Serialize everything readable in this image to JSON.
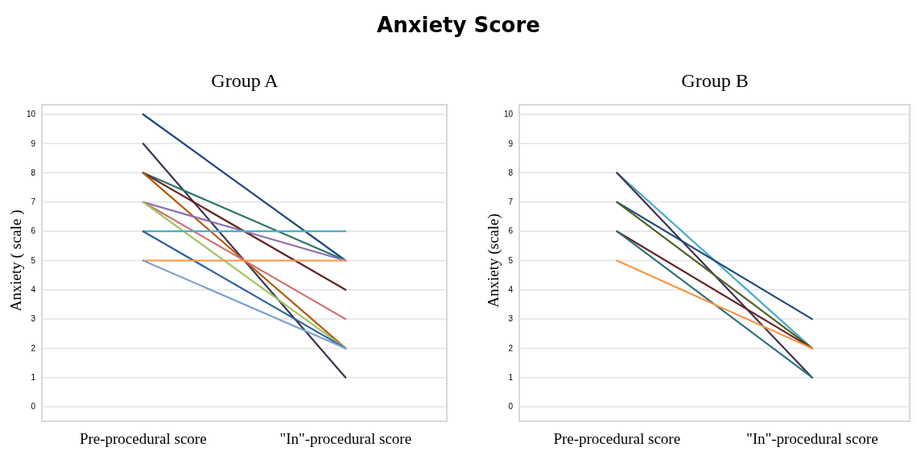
{
  "chart_data": [
    {
      "type": "line",
      "title": "Anxiety Score",
      "subtitle": "Group A",
      "ylabel": "Anxiety ( scale )",
      "categories": [
        "Pre-procedural score",
        "\"In\"-procedural score"
      ],
      "ylim": [
        0,
        10
      ],
      "yticks": [
        0,
        1,
        2,
        3,
        4,
        5,
        6,
        7,
        8,
        9,
        10
      ],
      "grid": "y",
      "marker": "none",
      "line_style": "solid",
      "series": [
        {
          "color": "#1f497d",
          "values": [
            10,
            5
          ]
        },
        {
          "color": "#403151",
          "values": [
            9,
            1
          ]
        },
        {
          "color": "#2e7468",
          "values": [
            8,
            5
          ]
        },
        {
          "color": "#632423",
          "values": [
            8,
            4
          ]
        },
        {
          "color": "#b65708",
          "values": [
            8,
            2
          ]
        },
        {
          "color": "#8c6fb0",
          "values": [
            7,
            5
          ]
        },
        {
          "color": "#d06f6f",
          "values": [
            7,
            3
          ]
        },
        {
          "color": "#a3c463",
          "values": [
            7,
            2
          ]
        },
        {
          "color": "#4bacc6",
          "values": [
            6,
            6
          ]
        },
        {
          "color": "#2c62a0",
          "values": [
            6,
            2
          ]
        },
        {
          "color": "#f79646",
          "values": [
            5,
            5
          ]
        },
        {
          "color": "#7ba0d4",
          "values": [
            5,
            2
          ]
        }
      ]
    },
    {
      "type": "line",
      "subtitle": "Group B",
      "ylabel": "Anxiety (scale)",
      "categories": [
        "Pre-procedural score",
        "\"In\"-procedural score"
      ],
      "ylim": [
        0,
        10
      ],
      "yticks": [
        0,
        1,
        2,
        3,
        4,
        5,
        6,
        7,
        8,
        9,
        10
      ],
      "grid": "y",
      "marker": "none",
      "line_style": "solid",
      "series": [
        {
          "color": "#4bacc6",
          "values": [
            8,
            2
          ]
        },
        {
          "color": "#403151",
          "values": [
            8,
            1
          ]
        },
        {
          "color": "#1f497d",
          "values": [
            7,
            3
          ]
        },
        {
          "color": "#4f6228",
          "values": [
            7,
            2
          ]
        },
        {
          "color": "#632423",
          "values": [
            6,
            2
          ]
        },
        {
          "color": "#31707a",
          "values": [
            6,
            1
          ]
        },
        {
          "color": "#f79646",
          "values": [
            5,
            2
          ]
        }
      ]
    }
  ]
}
